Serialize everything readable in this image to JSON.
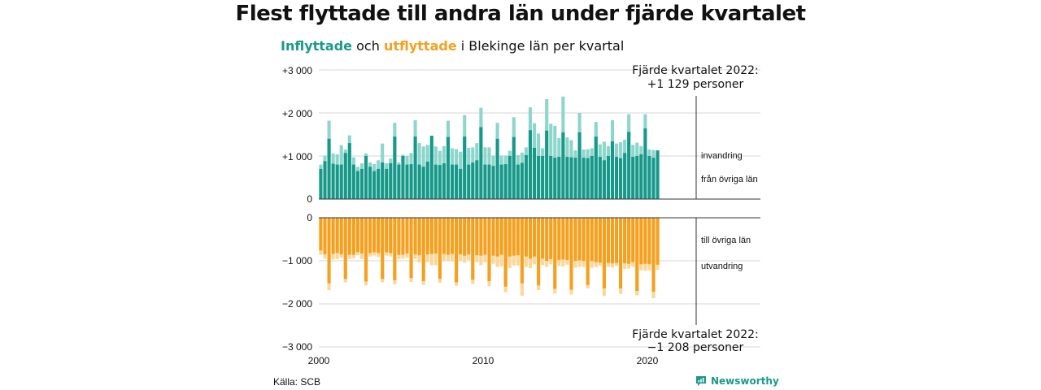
{
  "title": "Flest flyttade till andra län under fjärde kvartalet",
  "subtitle": {
    "in_word": "Inflyttade",
    "and_word": " och ",
    "out_word": "utflyttade",
    "rest": " i Blekinge län per kvartal"
  },
  "source": "Källa: SCB",
  "brand": "Newsworthy",
  "colors": {
    "in_dark": "#17998a",
    "in_light": "#8dd6cc",
    "out_dark": "#f5a01e",
    "out_light": "#fcd79a",
    "grid": "#d7d7d7",
    "title_in": "#1a9a8a"
  },
  "chart_data": {
    "type": "bar",
    "x_ticks": [
      "2000",
      "2010",
      "2020"
    ],
    "y_ticks_top": [
      "+3 000",
      "+2 000",
      "+1 000",
      "0"
    ],
    "y_ticks_bottom": [
      "0",
      "−1 000",
      "−2 000",
      "−3 000"
    ],
    "ylim_top": [
      0,
      3000
    ],
    "ylim_bottom": [
      -3000,
      0
    ],
    "annotation_top": {
      "line1": "Fjärde kvartalet 2022:",
      "line2": "+1 129 personer"
    },
    "annotation_bottom": {
      "line1": "Fjärde kvartalet 2022:",
      "line2": "−1 208 personer"
    },
    "legend": {
      "invandring": "invandring",
      "fran_ovriga_lan": "från övriga län",
      "till_ovriga_lan": "till övriga län",
      "utvandring": "utvandring"
    },
    "first_quarter": "2000-Q1",
    "series": [
      {
        "name": "från övriga län",
        "values": [
          700,
          880,
          1400,
          820,
          800,
          800,
          1070,
          1300,
          800,
          650,
          700,
          1000,
          750,
          650,
          700,
          850,
          700,
          830,
          1450,
          800,
          1000,
          800,
          810,
          1450,
          800,
          750,
          870,
          1470,
          800,
          790,
          830,
          1440,
          800,
          800,
          700,
          1450,
          800,
          850,
          900,
          1670,
          800,
          800,
          770,
          1400,
          800,
          810,
          1000,
          1440,
          800,
          840,
          1020,
          1600,
          1190,
          1000,
          1000,
          1590,
          1000,
          960,
          980,
          1550,
          980,
          970,
          960,
          1550,
          960,
          950,
          1000,
          1450,
          980,
          900,
          1000,
          1340,
          980,
          950,
          1070,
          1560,
          980,
          1000,
          1040,
          1640,
          1000,
          960,
          1129
        ]
      },
      {
        "name": "invandring",
        "values": [
          800,
          1010,
          1820,
          1060,
          1040,
          1250,
          1150,
          1480,
          970,
          750,
          830,
          1060,
          850,
          810,
          900,
          1290,
          830,
          940,
          1770,
          850,
          1030,
          1000,
          1070,
          1830,
          1300,
          1220,
          1260,
          1260,
          1220,
          1120,
          1230,
          1820,
          1180,
          1160,
          1100,
          1950,
          1190,
          1200,
          1300,
          2120,
          1200,
          1200,
          1010,
          1770,
          1010,
          1010,
          1120,
          1900,
          1020,
          1080,
          1200,
          2130,
          1760,
          1520,
          1180,
          2320,
          1750,
          1700,
          1420,
          2380,
          1430,
          1370,
          1130,
          2000,
          1150,
          1160,
          1180,
          1790,
          1270,
          1330,
          1230,
          1830,
          1290,
          1320,
          1380,
          1970,
          1260,
          1310,
          1230,
          1970,
          1150,
          1140,
          1129
        ]
      },
      {
        "name": "till övriga län",
        "values": [
          -760,
          -850,
          -1520,
          -840,
          -820,
          -850,
          -1420,
          -860,
          -860,
          -800,
          -830,
          -1480,
          -820,
          -800,
          -820,
          -1420,
          -800,
          -820,
          -1450,
          -860,
          -860,
          -830,
          -1400,
          -850,
          -870,
          -1470,
          -850,
          -840,
          -830,
          -1420,
          -840,
          -860,
          -840,
          -1500,
          -850,
          -880,
          -850,
          -1440,
          -870,
          -880,
          -860,
          -1470,
          -880,
          -900,
          -860,
          -1600,
          -900,
          -880,
          -870,
          -1520,
          -900,
          -950,
          -900,
          -1570,
          -950,
          -1000,
          -960,
          -1650,
          -980,
          -970,
          -980,
          -1670,
          -1000,
          -990,
          -1000,
          -1560,
          -1000,
          -1030,
          -1040,
          -1640,
          -1050,
          -1060,
          -1050,
          -1640,
          -1060,
          -1070,
          -1030,
          -1700,
          -1080,
          -1070,
          -1080,
          -1720,
          -1090
        ]
      },
      {
        "name": "utvandring",
        "values": [
          -860,
          -950,
          -1680,
          -970,
          -960,
          -930,
          -1500,
          -960,
          -940,
          -870,
          -960,
          -1570,
          -900,
          -880,
          -910,
          -1500,
          -880,
          -900,
          -1550,
          -960,
          -950,
          -930,
          -1490,
          -960,
          -1040,
          -1560,
          -1030,
          -1100,
          -1100,
          -1510,
          -1010,
          -990,
          -1010,
          -1580,
          -990,
          -1040,
          -980,
          -1540,
          -1030,
          -1100,
          -1030,
          -1590,
          -1070,
          -1140,
          -1130,
          -1730,
          -1170,
          -1110,
          -1110,
          -1810,
          -1140,
          -1170,
          -1080,
          -1680,
          -1100,
          -1140,
          -1080,
          -1760,
          -1120,
          -1130,
          -1090,
          -1780,
          -1160,
          -1140,
          -1140,
          -1640,
          -1160,
          -1150,
          -1120,
          -1810,
          -1140,
          -1160,
          -1120,
          -1770,
          -1190,
          -1180,
          -1140,
          -1800,
          -1220,
          -1230,
          -1220,
          -1870,
          -1208
        ]
      }
    ]
  }
}
